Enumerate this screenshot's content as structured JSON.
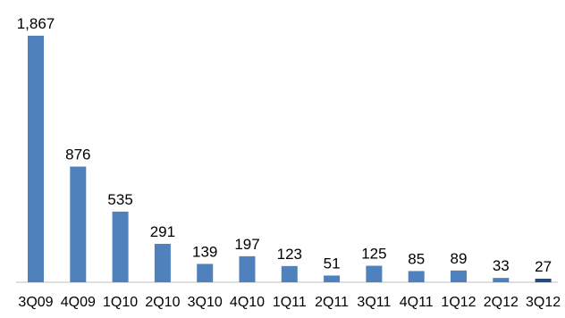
{
  "chart_data": {
    "type": "bar",
    "title": "",
    "xlabel": "",
    "ylabel": "",
    "categories": [
      "3Q09",
      "4Q09",
      "1Q10",
      "2Q10",
      "3Q10",
      "4Q10",
      "1Q11",
      "2Q11",
      "3Q11",
      "4Q11",
      "1Q12",
      "2Q12",
      "3Q12"
    ],
    "values": [
      1867,
      876,
      535,
      291,
      139,
      197,
      123,
      51,
      125,
      85,
      89,
      33,
      27
    ],
    "value_labels": [
      "1,867",
      "876",
      "535",
      "291",
      "139",
      "197",
      "123",
      "51",
      "125",
      "85",
      "89",
      "33",
      "27"
    ],
    "ylim": [
      0,
      1867
    ],
    "grid": false,
    "legend": "none",
    "colors": {
      "bar": "#4f81bd",
      "bar_highlight": "#254a7f",
      "axis": "#bfbfbf"
    },
    "highlight_index": 12
  }
}
